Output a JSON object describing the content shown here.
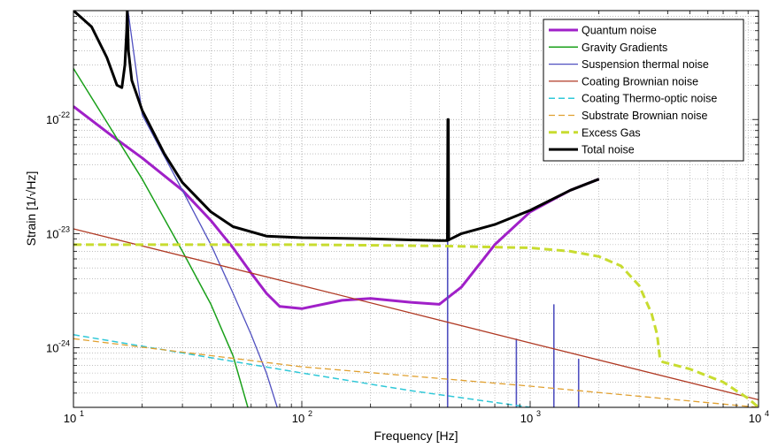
{
  "chart_data": {
    "type": "line",
    "xscale": "log",
    "yscale": "log",
    "xlim": [
      10,
      10000
    ],
    "ylim": [
      3e-25,
      9e-22
    ],
    "xlabel": "Frequency [Hz]",
    "ylabel": "Strain [1/√Hz]",
    "grid": true,
    "legend_position": "top-right",
    "x_ticks": [
      {
        "value": 10,
        "base": "10",
        "exp": "1"
      },
      {
        "value": 100,
        "base": "10",
        "exp": "2"
      },
      {
        "value": 1000,
        "base": "10",
        "exp": "3"
      },
      {
        "value": 10000,
        "base": "10",
        "exp": "4"
      }
    ],
    "y_ticks": [
      {
        "value": 1e-24,
        "base": "10",
        "exp": "-24"
      },
      {
        "value": 1e-23,
        "base": "10",
        "exp": "-23"
      },
      {
        "value": 1e-22,
        "base": "10",
        "exp": "-22"
      }
    ],
    "series": [
      {
        "name": "Quantum noise",
        "color": "#a020c8",
        "width": 3,
        "dash": "",
        "x": [
          10,
          15,
          20,
          30,
          40,
          50,
          60,
          70,
          80,
          100,
          150,
          200,
          300,
          400,
          500,
          700,
          1000,
          1500,
          2000
        ],
        "y": [
          1.3e-22,
          7e-23,
          4.6e-23,
          2.4e-23,
          1.3e-23,
          7.5e-24,
          4.5e-24,
          3e-24,
          2.3e-24,
          2.2e-24,
          2.6e-24,
          2.7e-24,
          2.5e-24,
          2.4e-24,
          3.4e-24,
          8e-24,
          1.55e-23,
          2.4e-23,
          3e-23
        ]
      },
      {
        "name": "Gravity Gradients",
        "color": "#1aa01a",
        "width": 1.5,
        "dash": "",
        "x": [
          10,
          20,
          30,
          40,
          50,
          58
        ],
        "y": [
          2.8e-22,
          3e-23,
          7e-24,
          2.4e-24,
          8.5e-25,
          3e-25
        ]
      },
      {
        "name": "Suspension thermal noise",
        "color": "#5050c0",
        "width": 1.3,
        "dash": "",
        "x": [
          17.2,
          20,
          30,
          40,
          50,
          60,
          70,
          78
        ],
        "y": [
          1e-21,
          1.1e-22,
          2.4e-23,
          8e-24,
          3e-24,
          1.3e-24,
          6e-25,
          3e-25
        ],
        "resonance_peaks": [
          {
            "x": 435,
            "y": 9e-24
          },
          {
            "x": 870,
            "y": 1.2e-24
          },
          {
            "x": 1270,
            "y": 2.4e-24
          },
          {
            "x": 1630,
            "y": 8e-25
          }
        ]
      },
      {
        "name": "Coating Brownian noise",
        "color": "#b03a24",
        "width": 1.3,
        "dash": "",
        "x": [
          10,
          100,
          1000,
          10000
        ],
        "y": [
          1.1e-23,
          3.5e-24,
          1.1e-24,
          3.5e-25
        ]
      },
      {
        "name": "Coating Thermo-optic noise",
        "color": "#30c8d8",
        "width": 1.5,
        "dash": "7,4",
        "x": [
          10,
          30,
          100,
          300,
          1000
        ],
        "y": [
          1.3e-24,
          9e-25,
          6e-25,
          4.2e-25,
          3e-25
        ]
      },
      {
        "name": "Substrate Brownian noise",
        "color": "#e0a030",
        "width": 1.3,
        "dash": "7,4",
        "x": [
          10,
          100,
          1000,
          10000
        ],
        "y": [
          1.2e-24,
          6.8e-25,
          4.6e-25,
          3e-25
        ]
      },
      {
        "name": "Excess Gas",
        "color": "#c8dc30",
        "width": 3,
        "dash": "9,5",
        "x": [
          10,
          100,
          400,
          1000,
          1500,
          2000,
          2500,
          3000,
          3400,
          3600,
          3700,
          3800,
          5000,
          7000,
          9000,
          10000
        ],
        "y": [
          8e-24,
          8e-24,
          7.8e-24,
          7.5e-24,
          7e-24,
          6.3e-24,
          5.2e-24,
          3.5e-24,
          2e-24,
          1.3e-24,
          8e-25,
          7.5e-25,
          6.5e-25,
          5e-25,
          3.6e-25,
          3e-25
        ]
      },
      {
        "name": "Total noise",
        "color": "#000000",
        "width": 3,
        "dash": "",
        "x": [
          10,
          12,
          14,
          15.5,
          16.3,
          16.8,
          17.1,
          17.2,
          17.4,
          18,
          20,
          25,
          30,
          40,
          50,
          70,
          100,
          200,
          300,
          400,
          434,
          436,
          438,
          440,
          500,
          700,
          1000,
          1500,
          2000
        ],
        "y": [
          9e-22,
          6.5e-22,
          3.5e-22,
          2e-22,
          1.9e-22,
          3e-22,
          6e-22,
          9e-22,
          4e-22,
          2.2e-22,
          1.2e-22,
          5e-23,
          2.8e-23,
          1.55e-23,
          1.15e-23,
          9.5e-24,
          9.2e-24,
          9e-24,
          8.8e-24,
          8.7e-24,
          8.7e-24,
          1e-22,
          1e-22,
          8.8e-24,
          1e-23,
          1.2e-23,
          1.6e-23,
          2.4e-23,
          3e-23
        ]
      }
    ]
  }
}
